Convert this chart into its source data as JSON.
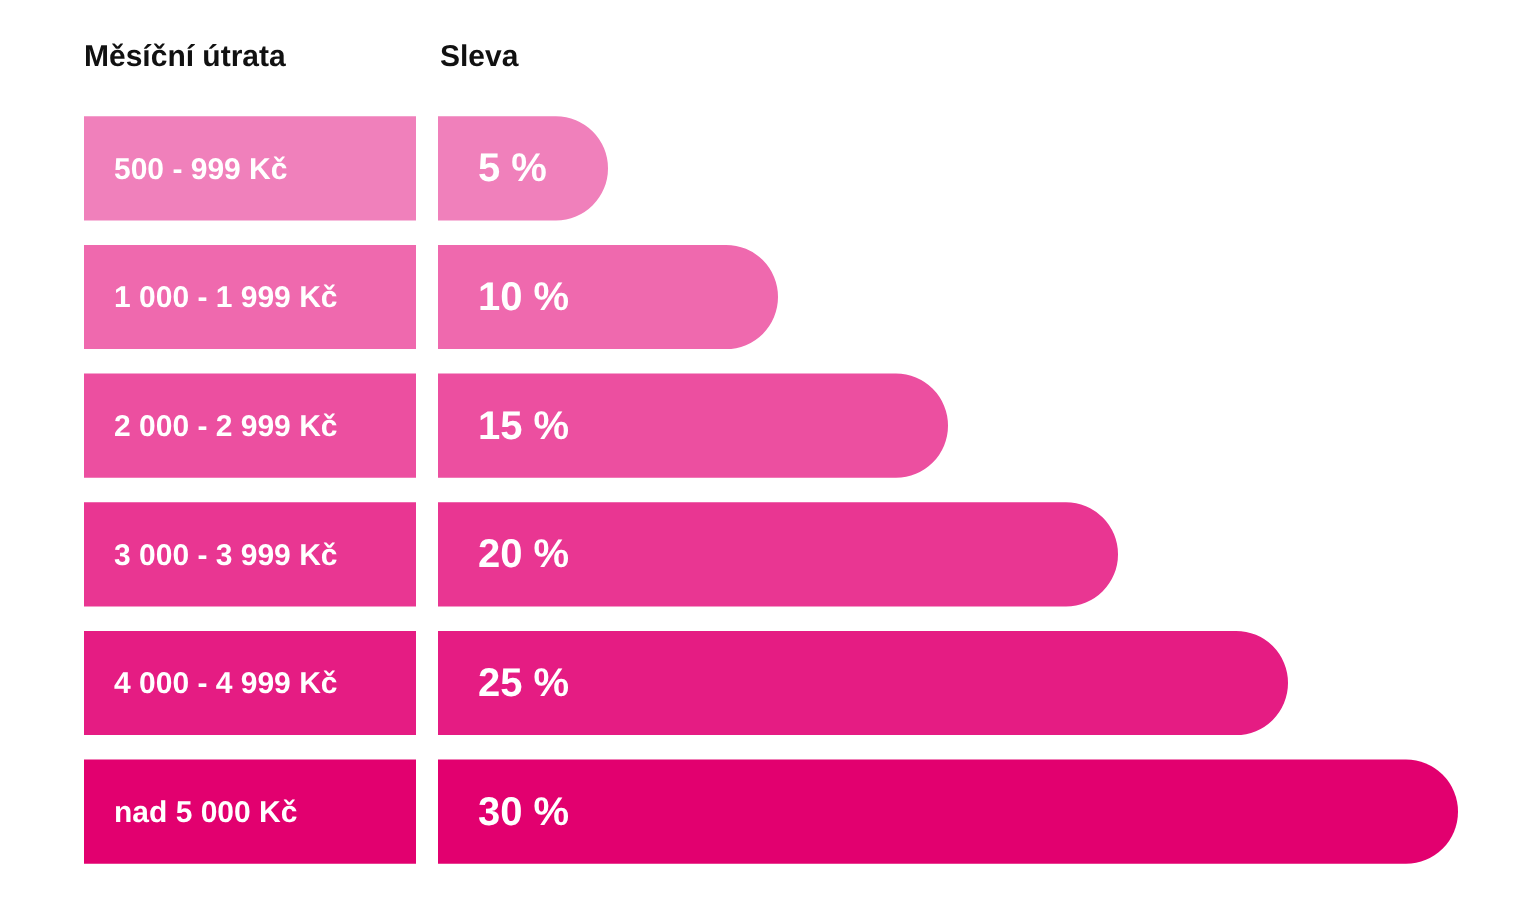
{
  "chart_data": {
    "type": "bar",
    "orientation": "horizontal",
    "ylabel": "Měsíční útrata",
    "xlabel": "Sleva",
    "categories": [
      "500 - 999 Kč",
      "1 000 - 1 999 Kč",
      "2 000 - 2 999 Kč",
      "3 000 - 3 999 Kč",
      "4 000 - 4 999 Kč",
      "nad 5 000 Kč"
    ],
    "values": [
      5,
      10,
      15,
      20,
      25,
      30
    ],
    "value_labels": [
      "5 %",
      "10 %",
      "15 %",
      "20 %",
      "25 %",
      "30 %"
    ],
    "colors": [
      "#f080bb",
      "#ef69ae",
      "#ec4fa0",
      "#e93692",
      "#e51c83",
      "#e2006f"
    ],
    "xlim": [
      0,
      30
    ]
  }
}
